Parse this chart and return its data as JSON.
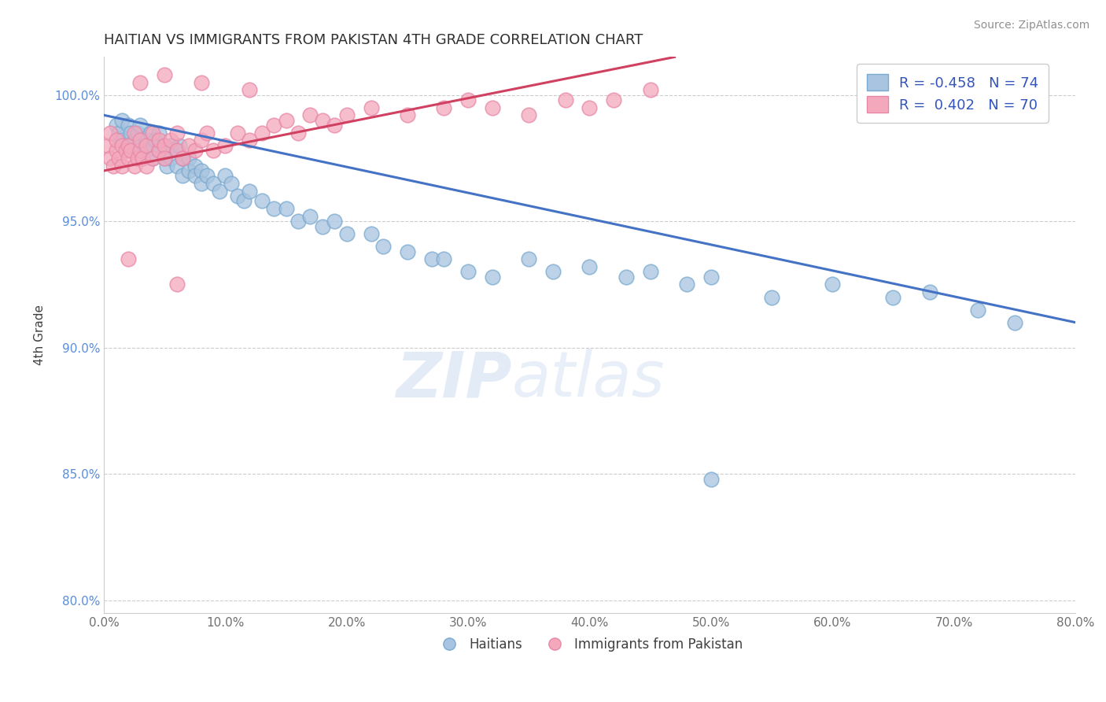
{
  "title": "HAITIAN VS IMMIGRANTS FROM PAKISTAN 4TH GRADE CORRELATION CHART",
  "source": "Source: ZipAtlas.com",
  "ylabel": "4th Grade",
  "xlabel": "",
  "xlim": [
    0.0,
    80.0
  ],
  "ylim": [
    79.5,
    101.5
  ],
  "yticks": [
    80.0,
    85.0,
    90.0,
    95.0,
    100.0
  ],
  "xticks": [
    0.0,
    10.0,
    20.0,
    30.0,
    40.0,
    50.0,
    60.0,
    70.0,
    80.0
  ],
  "blue_R": -0.458,
  "blue_N": 74,
  "pink_R": 0.402,
  "pink_N": 70,
  "blue_color": "#a8c4e0",
  "pink_color": "#f4a8bc",
  "blue_edge_color": "#7aaad0",
  "pink_edge_color": "#e888a8",
  "blue_line_color": "#4472c4",
  "pink_line_color": "#d04060",
  "legend_label_blue": "Haitians",
  "legend_label_pink": "Immigrants from Pakistan",
  "watermark_zip": "ZIP",
  "watermark_atlas": "atlas",
  "background_color": "#ffffff",
  "title_color": "#303030",
  "source_color": "#909090",
  "blue_scatter_x": [
    1.0,
    1.2,
    1.5,
    1.5,
    2.0,
    2.0,
    2.2,
    2.5,
    2.5,
    2.8,
    3.0,
    3.0,
    3.2,
    3.5,
    3.5,
    3.8,
    4.0,
    4.0,
    4.2,
    4.5,
    4.5,
    5.0,
    5.0,
    5.2,
    5.5,
    5.5,
    6.0,
    6.0,
    6.2,
    6.5,
    6.5,
    7.0,
    7.0,
    7.5,
    7.5,
    8.0,
    8.0,
    8.5,
    9.0,
    9.5,
    10.0,
    10.5,
    11.0,
    11.5,
    12.0,
    13.0,
    14.0,
    15.0,
    16.0,
    17.0,
    18.0,
    19.0,
    20.0,
    22.0,
    23.0,
    25.0,
    27.0,
    28.0,
    30.0,
    32.0,
    35.0,
    37.0,
    40.0,
    43.0,
    45.0,
    48.0,
    50.0,
    55.0,
    60.0,
    65.0,
    68.0,
    72.0,
    75.0,
    50.0
  ],
  "blue_scatter_y": [
    98.8,
    98.5,
    99.0,
    98.2,
    98.8,
    98.0,
    98.5,
    98.2,
    97.8,
    98.5,
    98.0,
    98.8,
    97.5,
    98.2,
    97.8,
    98.5,
    98.0,
    97.5,
    98.2,
    97.8,
    98.5,
    97.5,
    98.0,
    97.2,
    98.0,
    97.5,
    97.8,
    97.2,
    98.0,
    97.5,
    96.8,
    97.5,
    97.0,
    97.2,
    96.8,
    97.0,
    96.5,
    96.8,
    96.5,
    96.2,
    96.8,
    96.5,
    96.0,
    95.8,
    96.2,
    95.8,
    95.5,
    95.5,
    95.0,
    95.2,
    94.8,
    95.0,
    94.5,
    94.5,
    94.0,
    93.8,
    93.5,
    93.5,
    93.0,
    92.8,
    93.5,
    93.0,
    93.2,
    92.8,
    93.0,
    92.5,
    92.8,
    92.0,
    92.5,
    92.0,
    92.2,
    91.5,
    91.0,
    84.8
  ],
  "pink_scatter_x": [
    0.3,
    0.5,
    0.5,
    0.8,
    1.0,
    1.0,
    1.2,
    1.5,
    1.5,
    1.8,
    2.0,
    2.0,
    2.2,
    2.5,
    2.5,
    2.8,
    3.0,
    3.0,
    3.2,
    3.5,
    3.5,
    4.0,
    4.0,
    4.5,
    4.5,
    5.0,
    5.0,
    5.5,
    6.0,
    6.0,
    6.5,
    7.0,
    7.5,
    8.0,
    8.5,
    9.0,
    10.0,
    11.0,
    12.0,
    13.0,
    14.0,
    15.0,
    16.0,
    17.0,
    18.0,
    19.0,
    20.0,
    22.0,
    25.0,
    28.0,
    30.0,
    32.0,
    35.0,
    38.0,
    40.0,
    42.0,
    45.0
  ],
  "pink_scatter_y": [
    98.0,
    97.5,
    98.5,
    97.2,
    97.8,
    98.2,
    97.5,
    98.0,
    97.2,
    97.8,
    97.5,
    98.0,
    97.8,
    97.2,
    98.5,
    97.5,
    97.8,
    98.2,
    97.5,
    98.0,
    97.2,
    98.5,
    97.5,
    97.8,
    98.2,
    98.0,
    97.5,
    98.2,
    97.8,
    98.5,
    97.5,
    98.0,
    97.8,
    98.2,
    98.5,
    97.8,
    98.0,
    98.5,
    98.2,
    98.5,
    98.8,
    99.0,
    98.5,
    99.2,
    99.0,
    98.8,
    99.2,
    99.5,
    99.2,
    99.5,
    99.8,
    99.5,
    99.2,
    99.8,
    99.5,
    99.8,
    100.2
  ],
  "extra_pink_near100": [
    [
      3.0,
      100.5
    ],
    [
      5.0,
      100.8
    ],
    [
      8.0,
      100.5
    ],
    [
      12.0,
      100.2
    ],
    [
      2.0,
      93.5
    ],
    [
      6.0,
      92.5
    ]
  ],
  "blue_line_x": [
    0.0,
    80.0
  ],
  "blue_line_y": [
    99.2,
    91.0
  ],
  "pink_line_x": [
    0.0,
    47.0
  ],
  "pink_line_y": [
    97.0,
    101.5
  ],
  "legend_R_blue_text": "R = -0.458   N = 74",
  "legend_R_pink_text": "R =  0.402   N = 70"
}
